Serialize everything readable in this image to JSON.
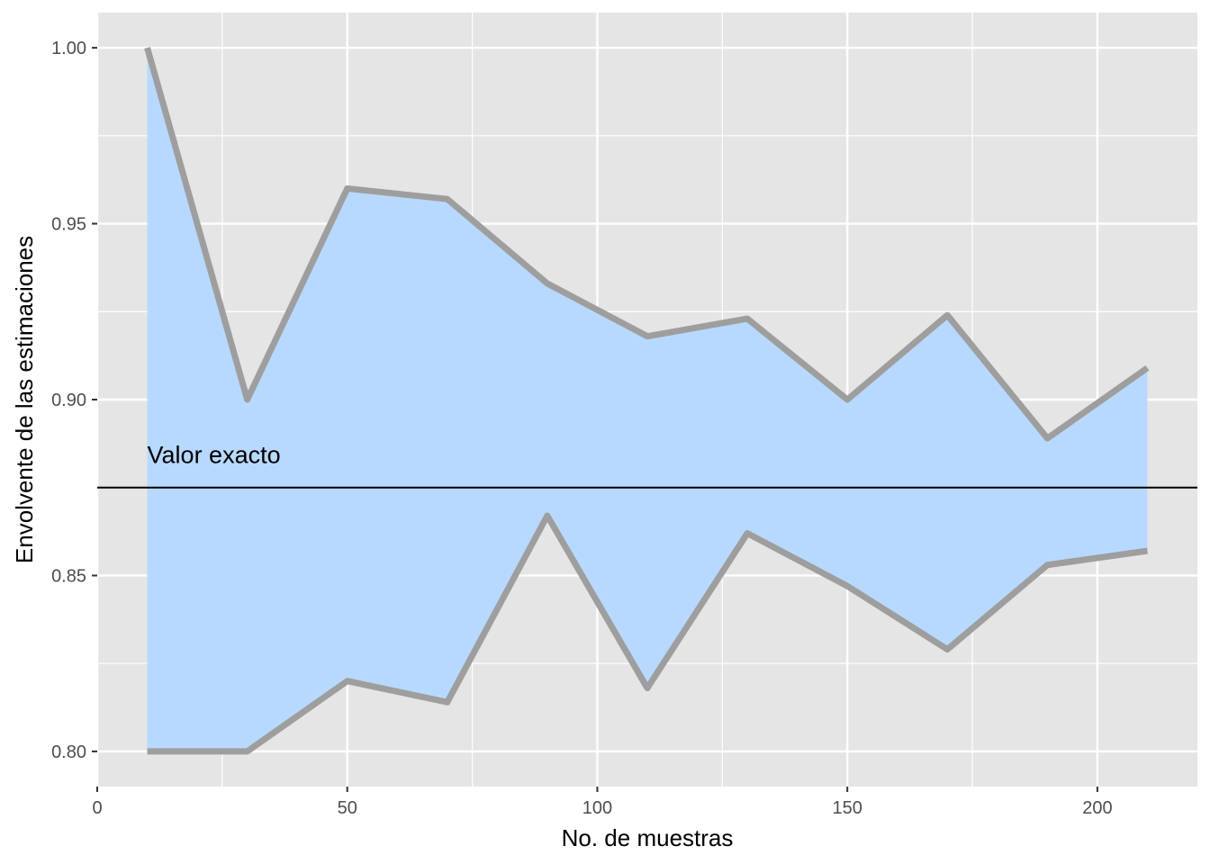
{
  "chart_data": {
    "type": "area",
    "title": "",
    "xlabel": "No. de muestras",
    "ylabel": "Envolvente de las estimaciones",
    "xlim": [
      0,
      220
    ],
    "ylim": [
      0.79,
      1.01
    ],
    "x_ticks": [
      0,
      50,
      100,
      150,
      200
    ],
    "x_tick_labels": [
      "0",
      "50",
      "100",
      "150",
      "200"
    ],
    "x_minor": [
      25,
      75,
      125,
      175
    ],
    "y_ticks": [
      0.8,
      0.85,
      0.9,
      0.95,
      1.0
    ],
    "y_tick_labels": [
      "0.80",
      "0.85",
      "0.90",
      "0.95",
      "1.00"
    ],
    "y_minor": [
      0.825,
      0.875,
      0.925,
      0.975
    ],
    "grid": true,
    "x": [
      10,
      30,
      50,
      70,
      90,
      110,
      130,
      150,
      170,
      190,
      210
    ],
    "series": [
      {
        "values": [
          1.0,
          0.9,
          0.96,
          0.957,
          0.933,
          0.918,
          0.923,
          0.9,
          0.924,
          0.889,
          0.909
        ]
      },
      {
        "values": [
          0.8,
          0.8,
          0.82,
          0.814,
          0.867,
          0.818,
          0.862,
          0.847,
          0.829,
          0.853,
          0.857
        ]
      }
    ],
    "reference_line": {
      "y": 0.875,
      "label": "Valor exacto",
      "label_x": 10
    },
    "colors": {
      "fill": "#b8d9ff",
      "envelope_line": "#9e9e9e",
      "panel": "#e5e5e5",
      "grid": "#ffffff",
      "reference": "#000000"
    }
  }
}
